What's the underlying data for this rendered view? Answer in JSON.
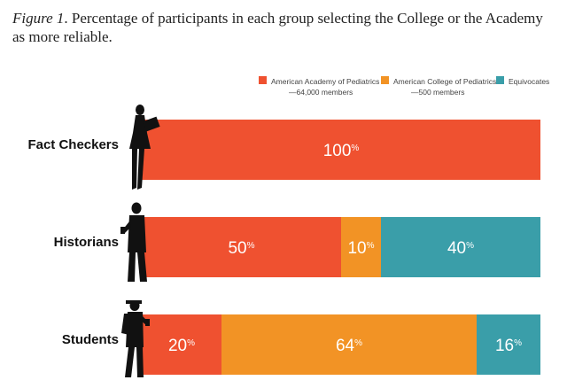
{
  "caption": {
    "figure_label": "Figure 1",
    "text": ". Percentage of participants in each group selecting the College or the Academy as more reliable."
  },
  "colors": {
    "academy": "#ef5130",
    "college": "#f29325",
    "equivocates": "#3a9ea9",
    "silhouette": "#111111"
  },
  "icons": [
    "woman-with-tablet-icon",
    "man-with-phone-icon",
    "student-with-phone-icon"
  ],
  "chart_data": {
    "type": "bar",
    "orientation": "horizontal",
    "stacked": true,
    "title": "",
    "xlabel": "",
    "ylabel": "",
    "xlim": [
      0,
      100
    ],
    "grid": false,
    "legend_position": "top-right",
    "categories": [
      "Fact Checkers",
      "Historians",
      "Students"
    ],
    "series": [
      {
        "name": "American Academy of Pediatrics",
        "sublabel": "—64,000 members",
        "color_key": "academy",
        "values": [
          100,
          50,
          20
        ]
      },
      {
        "name": "American College of Pediatrics",
        "sublabel": "—500 members",
        "color_key": "college",
        "values": [
          0,
          10,
          64
        ]
      },
      {
        "name": "Equivocates",
        "sublabel": "",
        "color_key": "equivocates",
        "values": [
          0,
          40,
          16
        ]
      }
    ],
    "value_suffix": "%"
  }
}
